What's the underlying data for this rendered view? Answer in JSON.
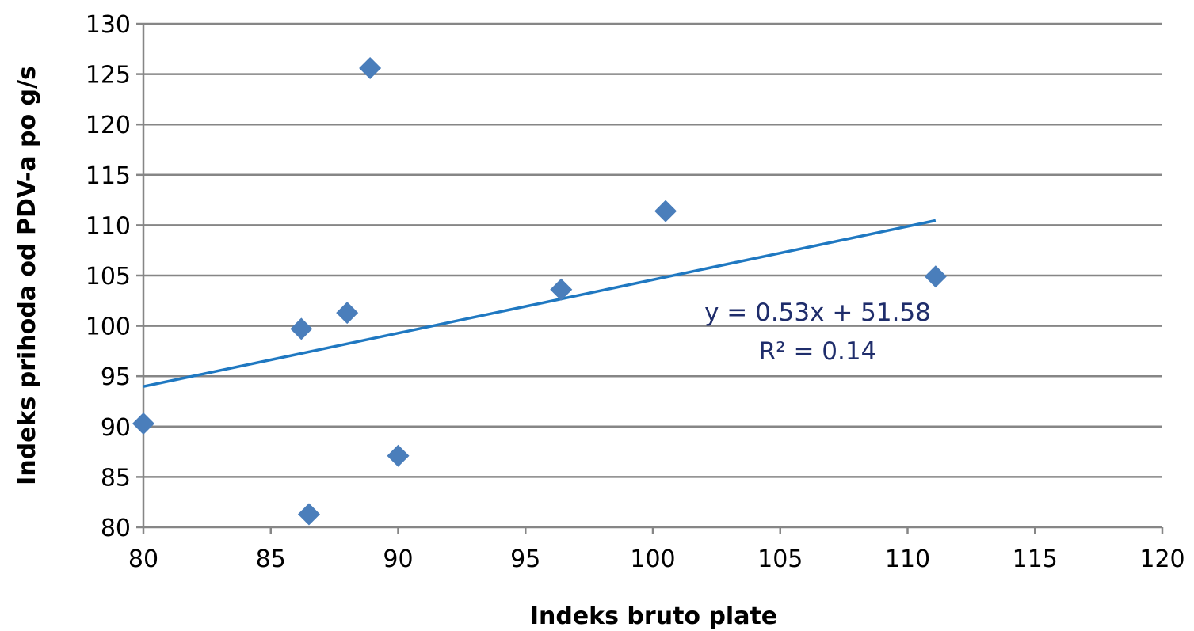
{
  "chart_data": {
    "type": "scatter",
    "title": "",
    "xlabel": "Indeks bruto plate",
    "ylabel": "Indeks prihoda od PDV-a po g/s",
    "xlim": [
      80,
      120
    ],
    "ylim": [
      80,
      130
    ],
    "xticks": [
      80,
      85,
      90,
      95,
      100,
      105,
      110,
      115,
      120
    ],
    "yticks": [
      80,
      85,
      90,
      95,
      100,
      105,
      110,
      115,
      120,
      125,
      130
    ],
    "grid": "horizontal",
    "colors": {
      "points": "#4a7ebb",
      "trendline": "#1f78c1",
      "gridlines": "#868686",
      "annotation": "#1f2d6b"
    },
    "series": [
      {
        "points": [
          {
            "x": 80.0,
            "y": 90.3
          },
          {
            "x": 86.2,
            "y": 99.7
          },
          {
            "x": 86.5,
            "y": 81.3
          },
          {
            "x": 88.0,
            "y": 101.3
          },
          {
            "x": 88.9,
            "y": 125.6
          },
          {
            "x": 90.0,
            "y": 87.1
          },
          {
            "x": 96.4,
            "y": 103.6
          },
          {
            "x": 100.5,
            "y": 111.4
          },
          {
            "x": 111.1,
            "y": 104.9
          }
        ]
      }
    ],
    "trendline": {
      "type": "linear",
      "slope": 0.53,
      "intercept": 51.58,
      "x_range": [
        80,
        111.1
      ],
      "equation_text": "y = 0.53x + 51.58",
      "r2_text": "R² = 0.14"
    }
  }
}
